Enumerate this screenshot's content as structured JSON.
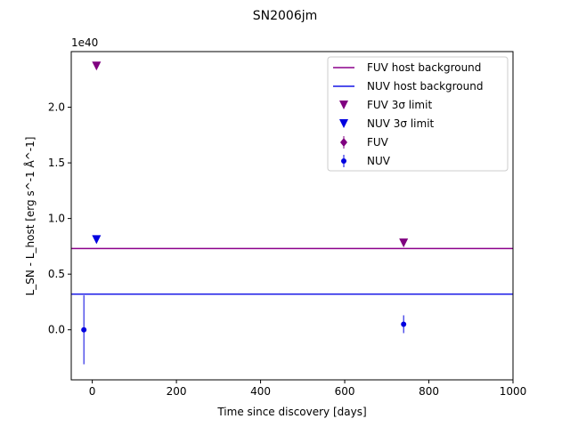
{
  "chart_data": {
    "type": "scatter",
    "title": "SN2006jm",
    "xlabel": "Time since discovery [days]",
    "ylabel": "L_SN - L_host [erg s^-1 Å^-1]",
    "offset_label": "1e40",
    "xlim": [
      -50,
      1000
    ],
    "ylim": [
      -0.45,
      2.5
    ],
    "y_scale_note": "values in units of 1e40",
    "xticks": [
      0,
      200,
      400,
      600,
      800,
      1000
    ],
    "xtick_labels": [
      "0",
      "200",
      "400",
      "600",
      "800",
      "1000"
    ],
    "yticks": [
      0.0,
      0.5,
      1.0,
      1.5,
      2.0
    ],
    "ytick_labels": [
      "0.0",
      "0.5",
      "1.0",
      "1.5",
      "2.0"
    ],
    "grid": false,
    "legend_position": "top-right",
    "hlines": [
      {
        "name": "FUV host background",
        "y": 0.73,
        "color": "#8b008b"
      },
      {
        "name": "NUV host background",
        "y": 0.32,
        "color": "#1515e6"
      }
    ],
    "series": [
      {
        "name": "FUV 3σ limit",
        "kind": "limit",
        "color": "#800080",
        "x": [
          10,
          740
        ],
        "y": [
          2.37,
          0.78
        ]
      },
      {
        "name": "NUV 3σ limit",
        "kind": "limit",
        "color": "#0000e0",
        "x": [
          10
        ],
        "y": [
          0.81
        ]
      },
      {
        "name": "FUV",
        "kind": "point",
        "color": "#800080",
        "x": [],
        "y": [],
        "yerr": []
      },
      {
        "name": "NUV",
        "kind": "point",
        "color": "#0000e0",
        "x": [
          -20,
          740
        ],
        "y": [
          0.0,
          0.05
        ],
        "yerr": [
          0.31,
          0.08
        ]
      }
    ]
  }
}
